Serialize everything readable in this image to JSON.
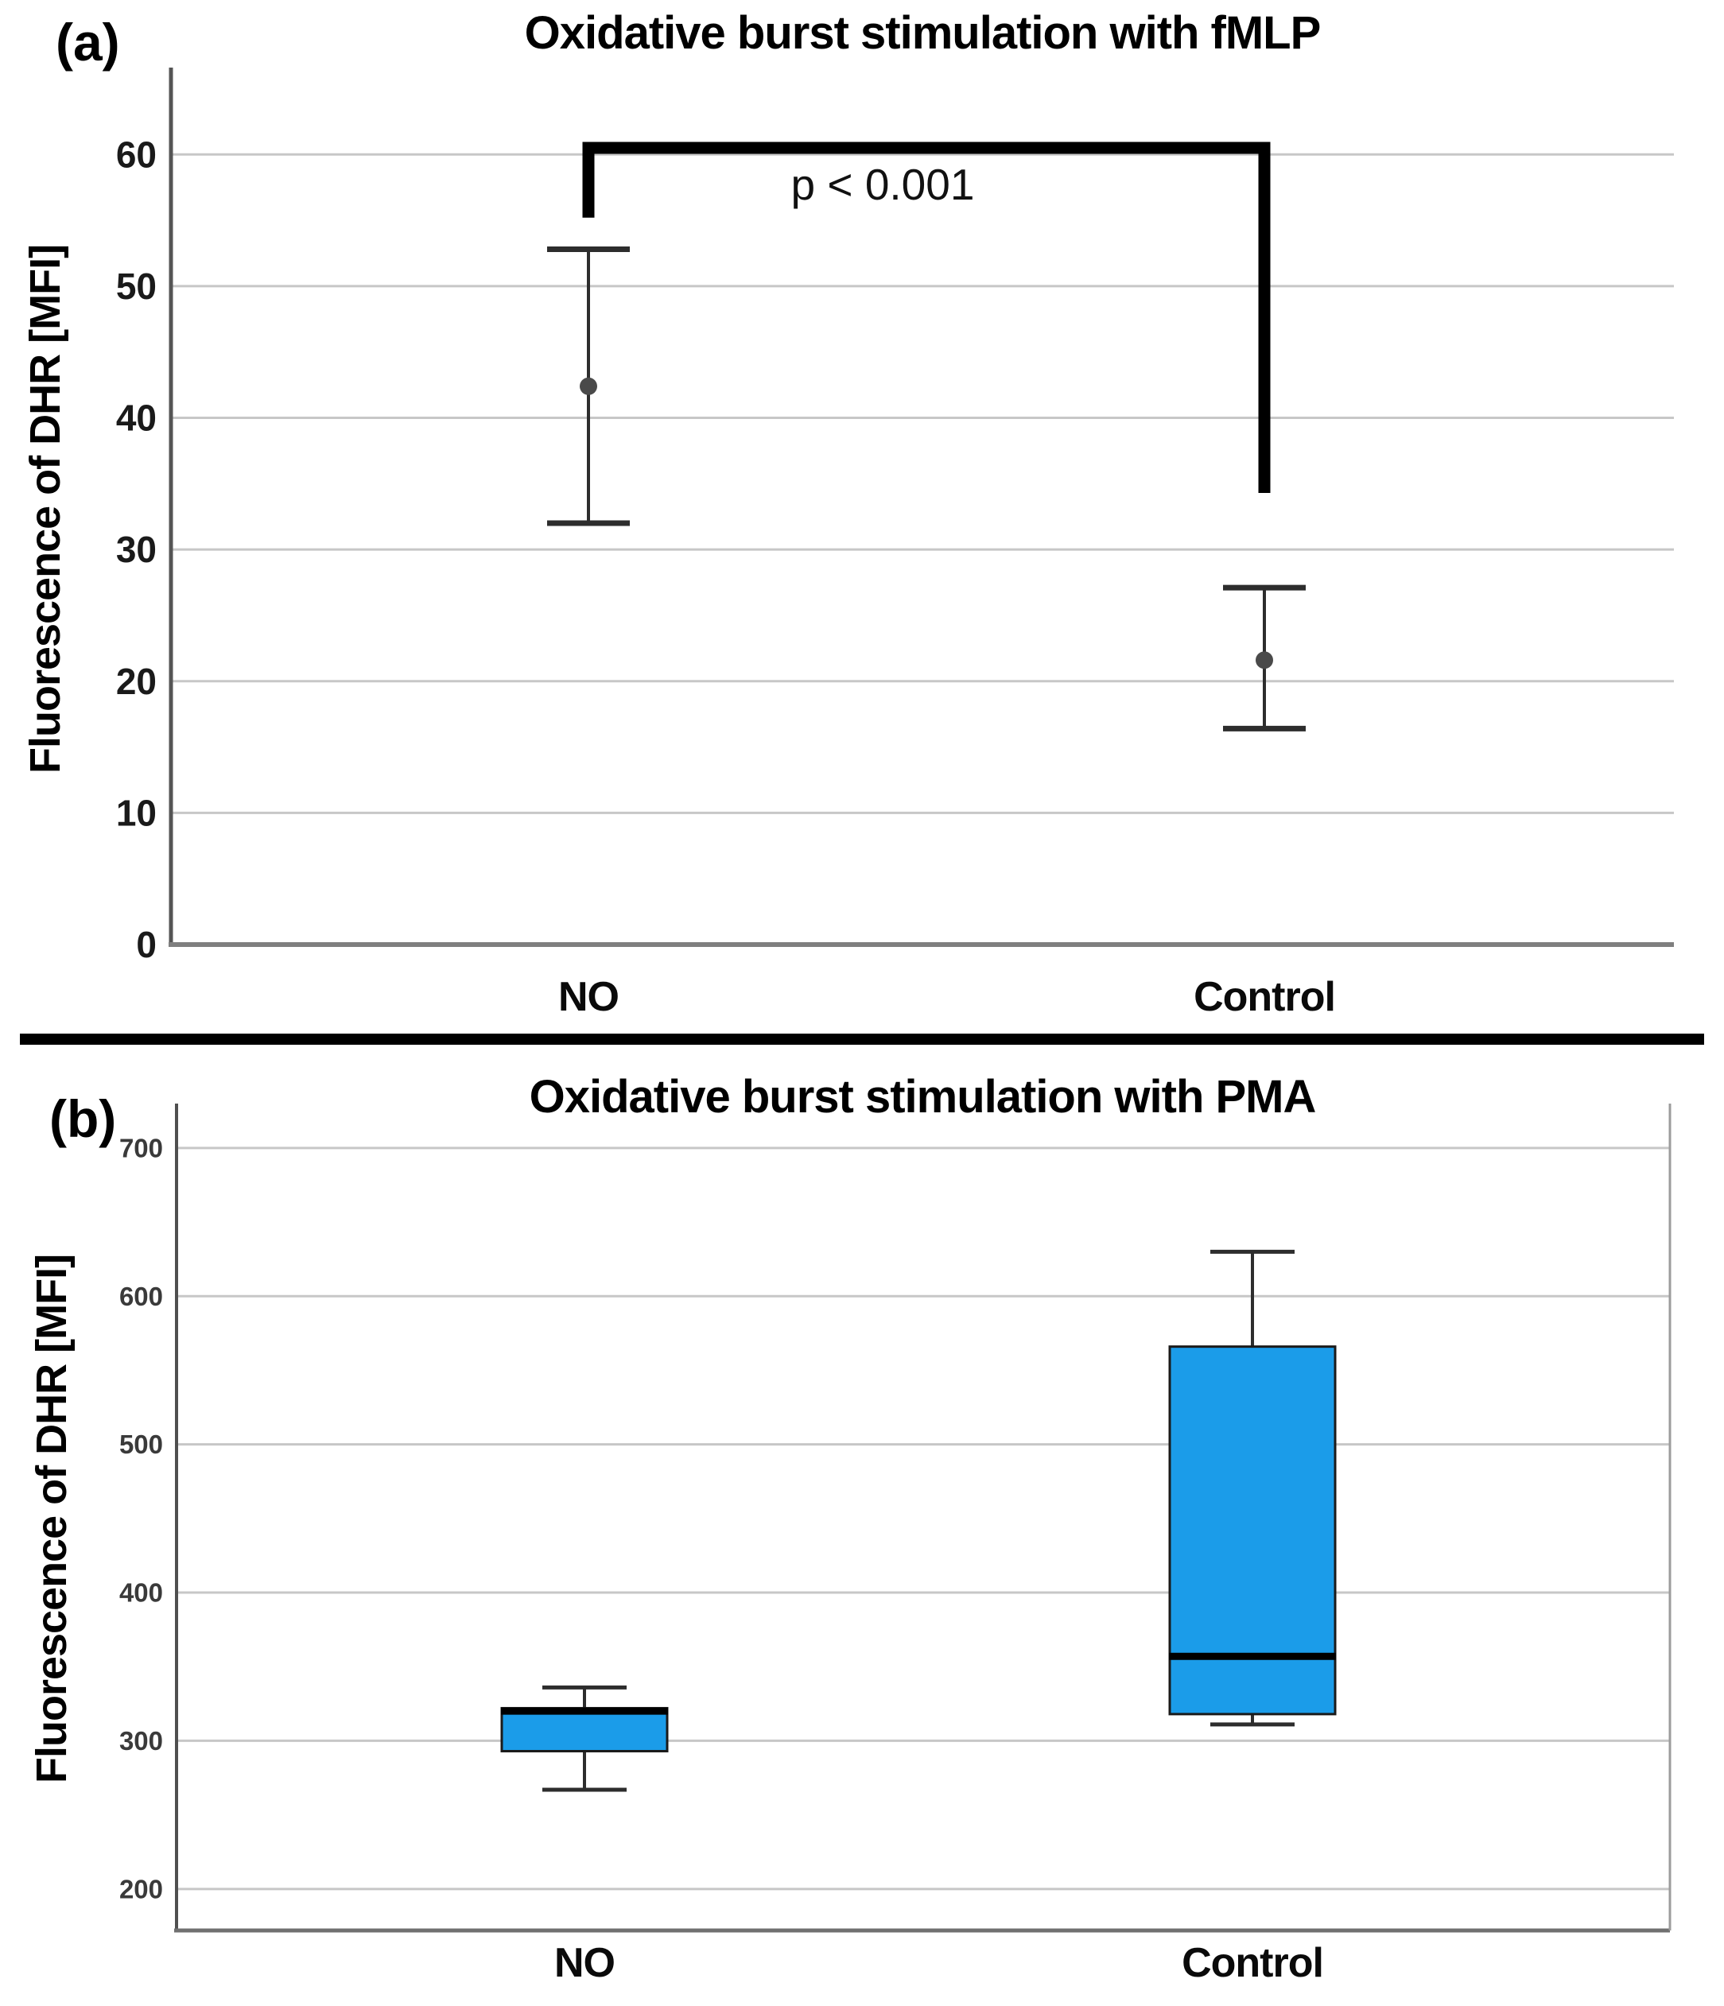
{
  "figure": {
    "separator_between_panels": true
  },
  "colors": {
    "background": "#ffffff",
    "box_fill": "#1b9ce9",
    "gridline": "#c7c7c7",
    "axis_dark": "#555555",
    "baseline_gray": "#7f7f7f",
    "errorbar_line": "#2d2d2d",
    "mean_dot": "#4a4a4a",
    "bracket": "#000000",
    "separator": "#000000",
    "tick_label_a": "#1a1a1a",
    "tick_label_b": "#3a3a3a"
  },
  "chart_data": [
    {
      "type": "errorbar",
      "panel_label": "(a)",
      "title": "Oxidative burst stimulation with fMLP",
      "ylabel": "Fluorescence of DHR [MFI]",
      "xlabel": "",
      "categories": [
        "NO",
        "Control"
      ],
      "points": [
        {
          "category": "NO",
          "mean": 42.4,
          "ci_low": 32.0,
          "ci_high": 52.8
        },
        {
          "category": "Control",
          "mean": 21.6,
          "ci_low": 16.4,
          "ci_high": 27.1
        }
      ],
      "yticks": [
        0,
        10,
        20,
        30,
        40,
        50,
        60
      ],
      "ylim": [
        0,
        66.6
      ],
      "grid": true,
      "legend_position": "none",
      "significance": {
        "label": "p < 0.001",
        "bar_value": 60.5,
        "drop_to_value_left": 55.2,
        "drop_to_value_right": 34.3
      }
    },
    {
      "type": "box",
      "panel_label": "(b)",
      "title": "Oxidative burst stimulation with PMA",
      "ylabel": "Fluorescence of DHR [MFI]",
      "xlabel": "",
      "categories": [
        "NO",
        "Control"
      ],
      "boxes": [
        {
          "category": "NO",
          "whisker_low": 267,
          "q1": 293,
          "median": 320,
          "q3": 322,
          "whisker_high": 336
        },
        {
          "category": "Control",
          "whisker_low": 311,
          "q1": 318,
          "median": 357,
          "q3": 566,
          "whisker_high": 630
        }
      ],
      "yticks": [
        200,
        300,
        400,
        500,
        600,
        700
      ],
      "ylim": [
        172,
        730
      ],
      "grid": true,
      "legend_position": "none"
    }
  ]
}
